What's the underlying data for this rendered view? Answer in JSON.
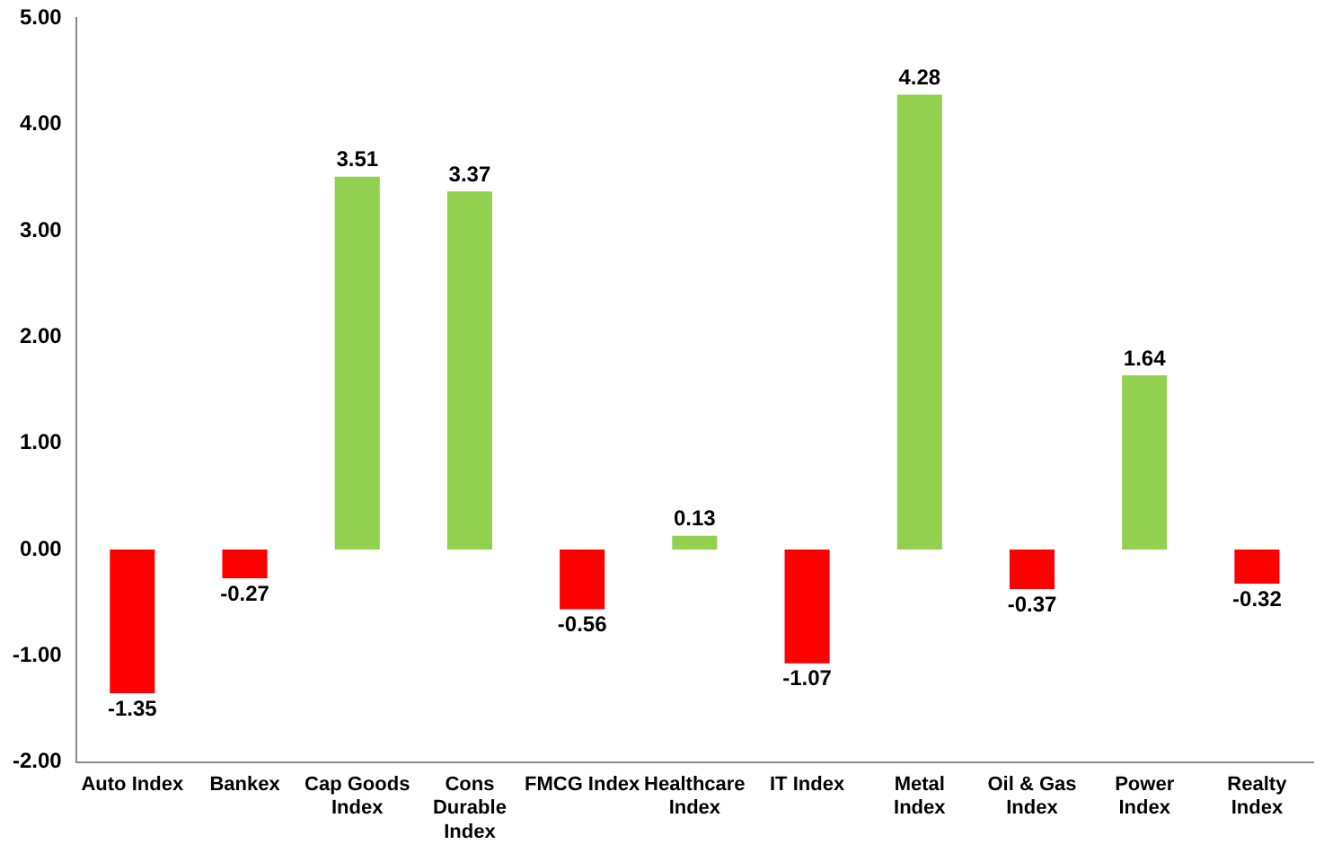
{
  "chart_data": {
    "type": "bar",
    "categories": [
      "Auto Index",
      "Bankex",
      "Cap Goods Index",
      "Cons Durable Index",
      "FMCG Index",
      "Healthcare Index",
      "IT Index",
      "Metal Index",
      "Oil & Gas Index",
      "Power Index",
      "Realty Index"
    ],
    "values": [
      -1.35,
      -0.27,
      3.51,
      3.37,
      -0.56,
      0.13,
      -1.07,
      4.28,
      -0.37,
      1.64,
      -0.32
    ],
    "colors": [
      "#ff0000",
      "#ff0000",
      "#92d050",
      "#92d050",
      "#ff0000",
      "#92d050",
      "#ff0000",
      "#92d050",
      "#ff0000",
      "#92d050",
      "#ff0000"
    ],
    "ylim": [
      -2,
      5
    ],
    "yticks": [
      {
        "value": -2,
        "label": "-2.00"
      },
      {
        "value": -1,
        "label": "-1.00"
      },
      {
        "value": 0,
        "label": "0.00"
      },
      {
        "value": 1,
        "label": "1.00"
      },
      {
        "value": 2,
        "label": "2.00"
      },
      {
        "value": 3,
        "label": "3.00"
      },
      {
        "value": 4,
        "label": "4.00"
      },
      {
        "value": 5,
        "label": "5.00"
      }
    ],
    "grid": false,
    "legend": false,
    "data_labels": true
  }
}
